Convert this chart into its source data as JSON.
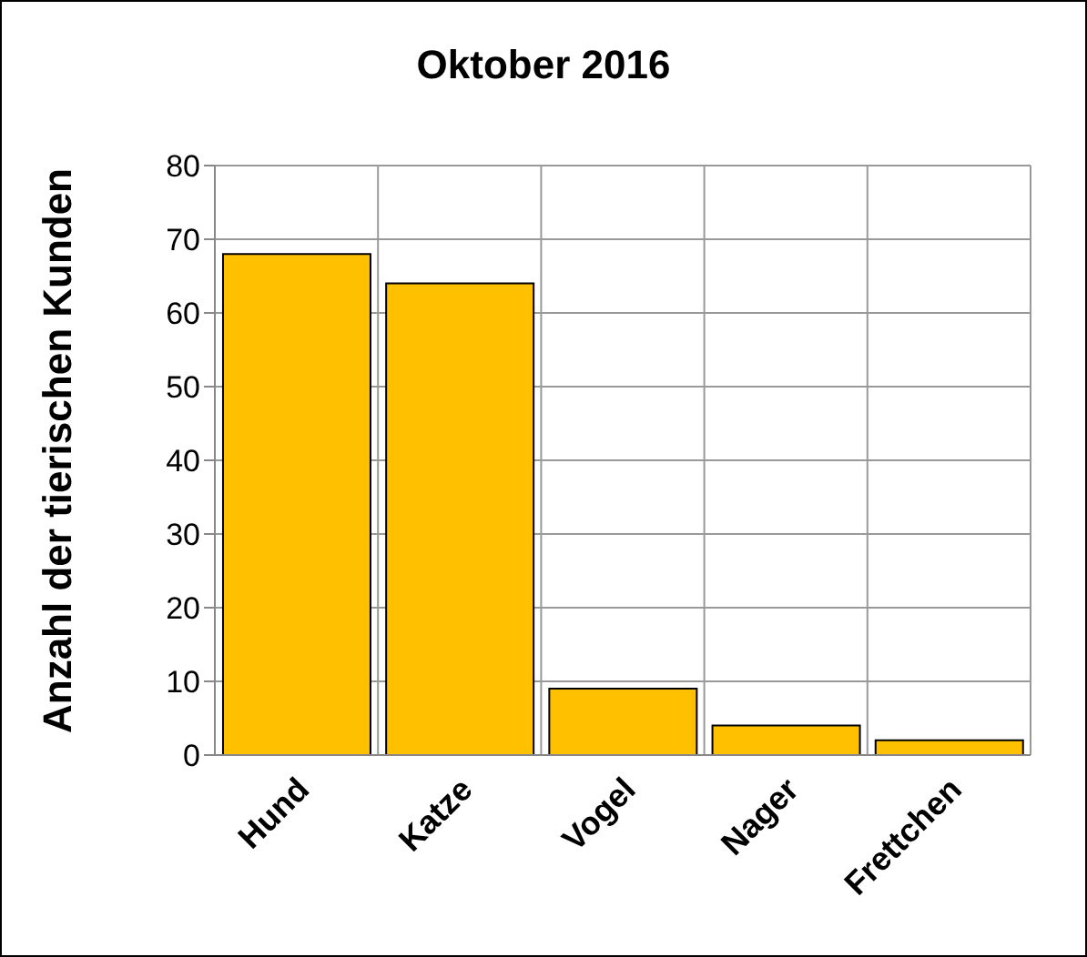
{
  "chart_data": {
    "type": "bar",
    "title": "Oktober 2016",
    "ylabel": "Anzahl der tierischen Kunden",
    "categories": [
      "Hund",
      "Katze",
      "Vogel",
      "Nager",
      "Frettchen"
    ],
    "values": [
      68,
      64,
      9,
      4,
      2
    ],
    "color": "#ffc000",
    "ylim": [
      0,
      80
    ],
    "yticks": [
      0,
      10,
      20,
      30,
      40,
      50,
      60,
      70,
      80
    ],
    "grid": true
  }
}
